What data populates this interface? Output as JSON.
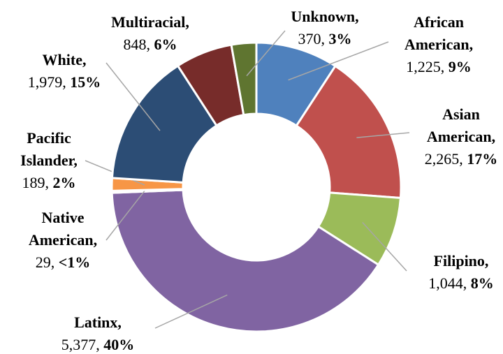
{
  "chart_data": {
    "type": "donut",
    "categories": [
      "African American",
      "Asian American",
      "Filipino",
      "Latinx",
      "Native American",
      "Pacific Islander",
      "White",
      "Multiracial",
      "Unknown"
    ],
    "values": [
      1225,
      2265,
      1044,
      5377,
      29,
      189,
      1979,
      848,
      370
    ],
    "value_labels": [
      "1,225",
      "2,265",
      "1,044",
      "5,377",
      "29",
      "189",
      "1,979",
      "848",
      "370"
    ],
    "percent_labels": [
      "9%",
      "17%",
      "8%",
      "40%",
      "<1%",
      "2%",
      "15%",
      "6%",
      "3%"
    ],
    "separator": ",",
    "colors": [
      "#4f81bd",
      "#c0504d",
      "#9bbb59",
      "#8064a2",
      "#4bacc6",
      "#f79646",
      "#2c4d75",
      "#772c2a",
      "#5f7530"
    ]
  }
}
